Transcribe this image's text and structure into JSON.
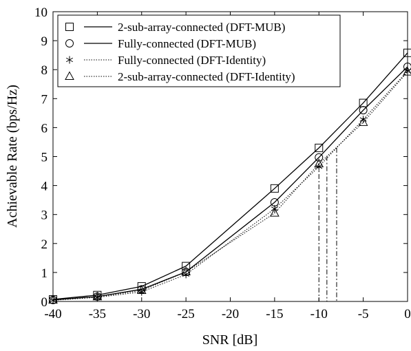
{
  "chart_data": {
    "type": "line",
    "title": "",
    "xlabel": "SNR [dB]",
    "ylabel": "Achievable Rate (bps/Hz)",
    "xlim": [
      -40,
      0
    ],
    "ylim": [
      0,
      10
    ],
    "x_ticks": [
      -40,
      -35,
      -30,
      -25,
      -20,
      -15,
      -10,
      -5,
      0
    ],
    "y_ticks": [
      0,
      1,
      2,
      3,
      4,
      5,
      6,
      7,
      8,
      9,
      10
    ],
    "grid": false,
    "legend_position": "top-left",
    "x": [
      -40,
      -35,
      -30,
      -25,
      -15,
      -10,
      -5,
      0
    ],
    "series": [
      {
        "name": "2-sub-array-connected (DFT-MUB)",
        "marker": "square",
        "line": "solid",
        "values": [
          0.07,
          0.22,
          0.52,
          1.22,
          3.9,
          5.3,
          6.85,
          8.58
        ]
      },
      {
        "name": "Fully-connected (DFT-MUB)",
        "marker": "circle",
        "line": "solid",
        "values": [
          0.05,
          0.17,
          0.42,
          1.02,
          3.42,
          4.97,
          6.6,
          8.1
        ]
      },
      {
        "name": "Fully-connected (DFT-Identity)",
        "marker": "asterisk",
        "line": "dotted",
        "values": [
          0.04,
          0.14,
          0.33,
          0.93,
          3.2,
          4.65,
          6.28,
          7.95
        ]
      },
      {
        "name": "2-sub-array-connected (DFT-Identity)",
        "marker": "triangle",
        "line": "dotted",
        "values": [
          0.05,
          0.16,
          0.38,
          1.02,
          3.05,
          4.75,
          6.18,
          7.92
        ]
      }
    ],
    "reference_lines": [
      {
        "x": -10,
        "y": 4.75
      },
      {
        "x": -9.1,
        "y": 5.02
      },
      {
        "x": -8,
        "y": 5.3
      }
    ],
    "colors": {
      "line": "#000000",
      "background": "#ffffff"
    }
  }
}
